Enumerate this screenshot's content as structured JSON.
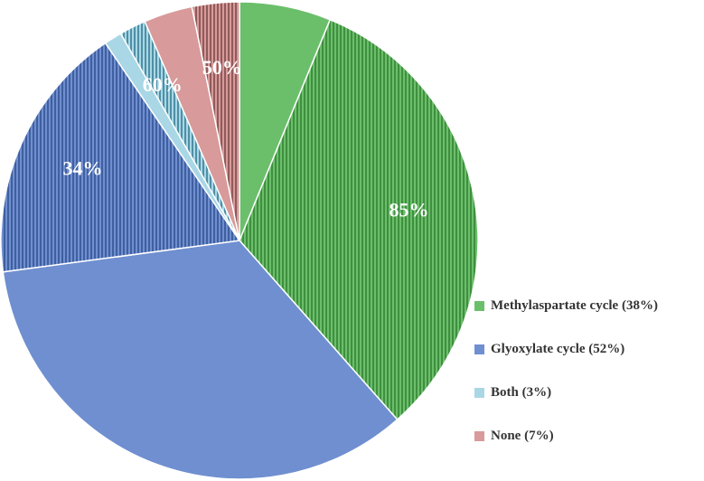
{
  "chart_data": {
    "type": "pie",
    "title": "",
    "start_angle_deg": 0,
    "direction": "clockwise",
    "categories": [
      "Methylaspartate cycle (38%)",
      "Glyoxylate cycle (52%)",
      "Both (3%)",
      "None (7%)"
    ],
    "category_colors": [
      "#6bbf6b",
      "#6f8fd0",
      "#a9d7e6",
      "#d89a9a"
    ],
    "hatch_colors": [
      "#3f8f3f",
      "#3f5f9f",
      "#4f8fa5",
      "#8f5a5a"
    ],
    "slices": [
      {
        "category": 0,
        "value": 6.2,
        "hatched": false,
        "label": ""
      },
      {
        "category": 0,
        "value": 32.3,
        "hatched": true,
        "label": "85%"
      },
      {
        "category": 1,
        "value": 34.4,
        "hatched": false,
        "label": ""
      },
      {
        "category": 1,
        "value": 17.6,
        "hatched": true,
        "label": "34%"
      },
      {
        "category": 2,
        "value": 1.2,
        "hatched": false,
        "label": ""
      },
      {
        "category": 2,
        "value": 1.8,
        "hatched": true,
        "label": "60%"
      },
      {
        "category": 3,
        "value": 3.3,
        "hatched": false,
        "label": ""
      },
      {
        "category": 3,
        "value": 3.2,
        "hatched": true,
        "label": "50%"
      }
    ],
    "legend": {
      "position": "right",
      "entries": [
        {
          "label": "Methylaspartate cycle (38%)",
          "color": "#6bbf6b"
        },
        {
          "label": "Glyoxylate cycle (52%)",
          "color": "#6f8fd0"
        },
        {
          "label": "Both (3%)",
          "color": "#a9d7e6"
        },
        {
          "label": "None (7%)",
          "color": "#d89a9a"
        }
      ]
    }
  }
}
